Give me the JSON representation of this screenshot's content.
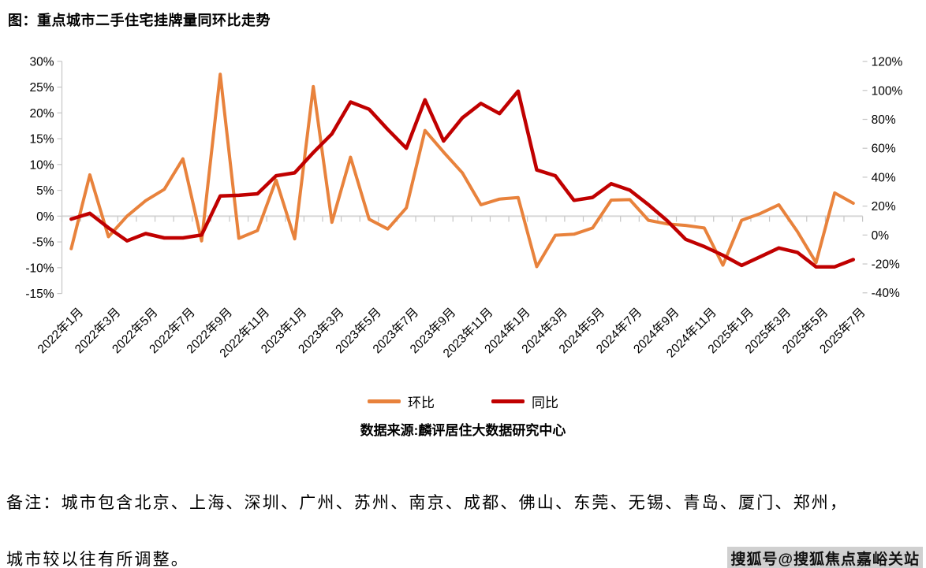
{
  "title": "图：重点城市二手住宅挂牌量同环比走势",
  "chart_data": {
    "type": "line",
    "x": [
      "2022年1月",
      "2022年2月",
      "2022年3月",
      "2022年4月",
      "2022年5月",
      "2022年6月",
      "2022年7月",
      "2022年8月",
      "2022年9月",
      "2022年10月",
      "2022年11月",
      "2022年12月",
      "2023年1月",
      "2023年2月",
      "2023年3月",
      "2023年4月",
      "2023年5月",
      "2023年6月",
      "2023年7月",
      "2023年8月",
      "2023年9月",
      "2023年10月",
      "2023年11月",
      "2023年12月",
      "2024年1月",
      "2024年2月",
      "2024年3月",
      "2024年4月",
      "2024年5月",
      "2024年6月",
      "2024年7月",
      "2024年8月",
      "2024年9月",
      "2024年10月",
      "2024年11月",
      "2024年12月",
      "2025年1月",
      "2025年2月",
      "2025年3月",
      "2025年4月",
      "2025年5月",
      "2025年6月",
      "2025年7月"
    ],
    "x_tick_labels": [
      "2022年1月",
      "2022年3月",
      "2022年5月",
      "2022年7月",
      "2022年9月",
      "2022年11月",
      "2023年1月",
      "2023年3月",
      "2023年5月",
      "2023年7月",
      "2023年9月",
      "2023年11月",
      "2024年1月",
      "2024年3月",
      "2024年5月",
      "2024年7月",
      "2024年9月",
      "2024年11月",
      "2025年1月",
      "2025年3月",
      "2025年5月",
      "2025年7月"
    ],
    "series": [
      {
        "name": "环比",
        "axis": "left",
        "color": "#E8823C",
        "values": [
          -6.3,
          8.0,
          -4.0,
          0.0,
          3.0,
          5.2,
          11.1,
          -4.8,
          27.5,
          -4.3,
          -2.8,
          7.0,
          -4.4,
          25.1,
          -1.2,
          11.4,
          -0.6,
          -2.5,
          1.6,
          16.6,
          12.4,
          8.4,
          2.2,
          3.3,
          3.6,
          -9.8,
          -3.7,
          -3.5,
          -2.3,
          3.1,
          3.2,
          -0.8,
          -1.5,
          -1.8,
          -2.3,
          -9.5,
          -0.8,
          0.5,
          2.2,
          -3.0,
          -9.0,
          4.5,
          2.5
        ]
      },
      {
        "name": "同比",
        "axis": "right",
        "color": "#C00000",
        "values": [
          11,
          15,
          5,
          -4,
          1,
          -2,
          -2,
          0,
          27,
          27.5,
          28.5,
          41,
          43,
          57,
          70,
          92,
          87,
          73,
          60,
          93.5,
          65,
          81,
          91,
          84,
          99.5,
          45,
          41,
          24,
          26,
          35.5,
          31,
          21,
          10,
          -3,
          -8,
          -14,
          -21,
          -15,
          -9,
          -12,
          -22,
          -22,
          -17
        ]
      }
    ],
    "left_axis": {
      "tick_labels": [
        "30%",
        "25%",
        "20%",
        "15%",
        "10%",
        "5%",
        "0%",
        "-5%",
        "-10%",
        "-15%"
      ],
      "tick_values": [
        30,
        25,
        20,
        15,
        10,
        5,
        0,
        -5,
        -10,
        -15
      ],
      "min": -15,
      "max": 30
    },
    "right_axis": {
      "tick_labels": [
        "120%",
        "100%",
        "80%",
        "60%",
        "40%",
        "20%",
        "0%",
        "-20%",
        "-40%"
      ],
      "tick_values": [
        120,
        100,
        80,
        60,
        40,
        20,
        0,
        -20,
        -40
      ],
      "min": -40,
      "max": 120
    },
    "grid": "zero-line-only",
    "legend_position": "bottom",
    "title": "图：重点城市二手住宅挂牌量同环比走势",
    "source": "数据来源:麟评居住大数据研究中心"
  },
  "legend": {
    "items": [
      {
        "label": "环比"
      },
      {
        "label": "同比"
      }
    ]
  },
  "source_line": "数据来源:麟评居住大数据研究中心",
  "note_line1": "备注：城市包含北京、上海、深圳、广州、苏州、南京、成都、佛山、东莞、无锡、青岛、厦门、郑州，",
  "note_line2": "城市较以往有所调整。",
  "watermark": "搜狐号@搜狐焦点嘉峪关站",
  "colors": {
    "series_mom": "#E8823C",
    "series_yoy": "#C00000",
    "axis_gray": "#C6C6C6",
    "text": "#000000"
  }
}
